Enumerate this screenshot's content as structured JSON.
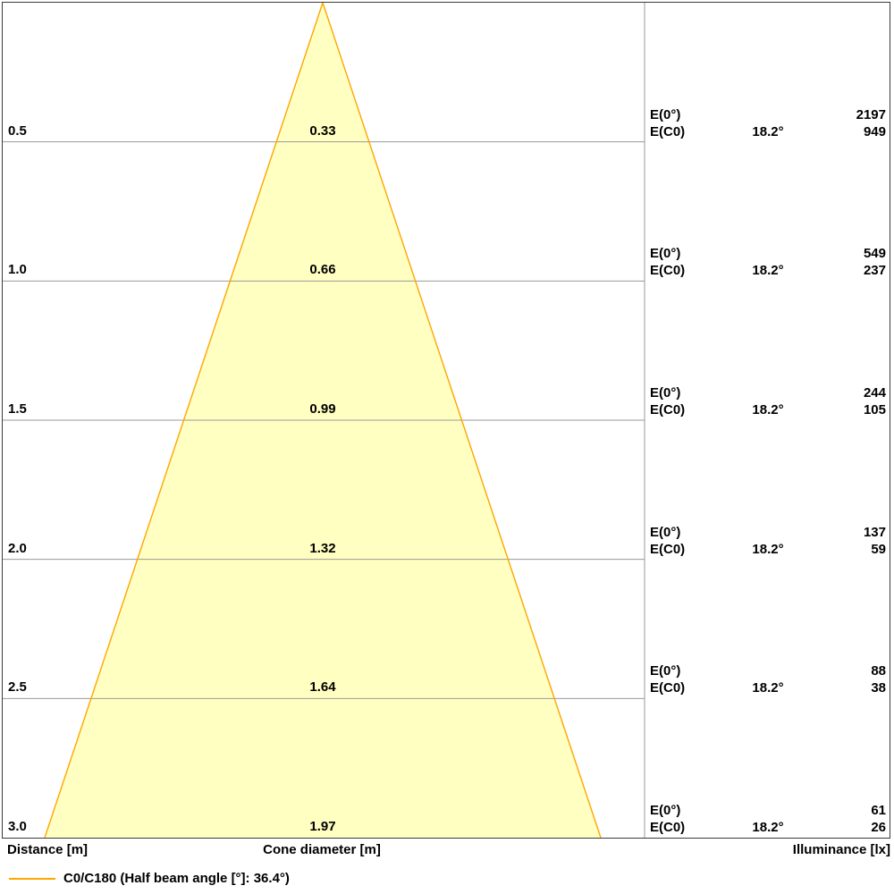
{
  "chart_data": {
    "type": "cone-diagram",
    "description": "Light cone diagram: beam spread and illuminance vs distance",
    "axis_labels": {
      "distance": "Distance [m]",
      "cone_diameter": "Cone diameter [m]",
      "illuminance": "Illuminance [lx]"
    },
    "legend": {
      "label": "C0/C180 (Half beam angle [°]: 36.4°)",
      "half_beam_angle_deg": 36.4
    },
    "rows": [
      {
        "distance": "0.5",
        "cone_diameter": "0.33",
        "e0_label": "E(0°)",
        "e0": "2197",
        "ec0_label": "E(C0)",
        "angle": "18.2°",
        "ec0": "949"
      },
      {
        "distance": "1.0",
        "cone_diameter": "0.66",
        "e0_label": "E(0°)",
        "e0": "549",
        "ec0_label": "E(C0)",
        "angle": "18.2°",
        "ec0": "237"
      },
      {
        "distance": "1.5",
        "cone_diameter": "0.99",
        "e0_label": "E(0°)",
        "e0": "244",
        "ec0_label": "E(C0)",
        "angle": "18.2°",
        "ec0": "105"
      },
      {
        "distance": "2.0",
        "cone_diameter": "1.32",
        "e0_label": "E(0°)",
        "e0": "137",
        "ec0_label": "E(C0)",
        "angle": "18.2°",
        "ec0": "59"
      },
      {
        "distance": "2.5",
        "cone_diameter": "1.64",
        "e0_label": "E(0°)",
        "e0": "88",
        "ec0_label": "E(C0)",
        "angle": "18.2°",
        "ec0": "38"
      },
      {
        "distance": "3.0",
        "cone_diameter": "1.97",
        "e0_label": "E(0°)",
        "e0": "61",
        "ec0_label": "E(C0)",
        "angle": "18.2°",
        "ec0": "26"
      }
    ],
    "colors": {
      "cone_fill": "#ffffc2",
      "cone_stroke": "#ffa500",
      "grid": "#999999",
      "border": "#3a3a3a",
      "text": "#000000"
    }
  }
}
